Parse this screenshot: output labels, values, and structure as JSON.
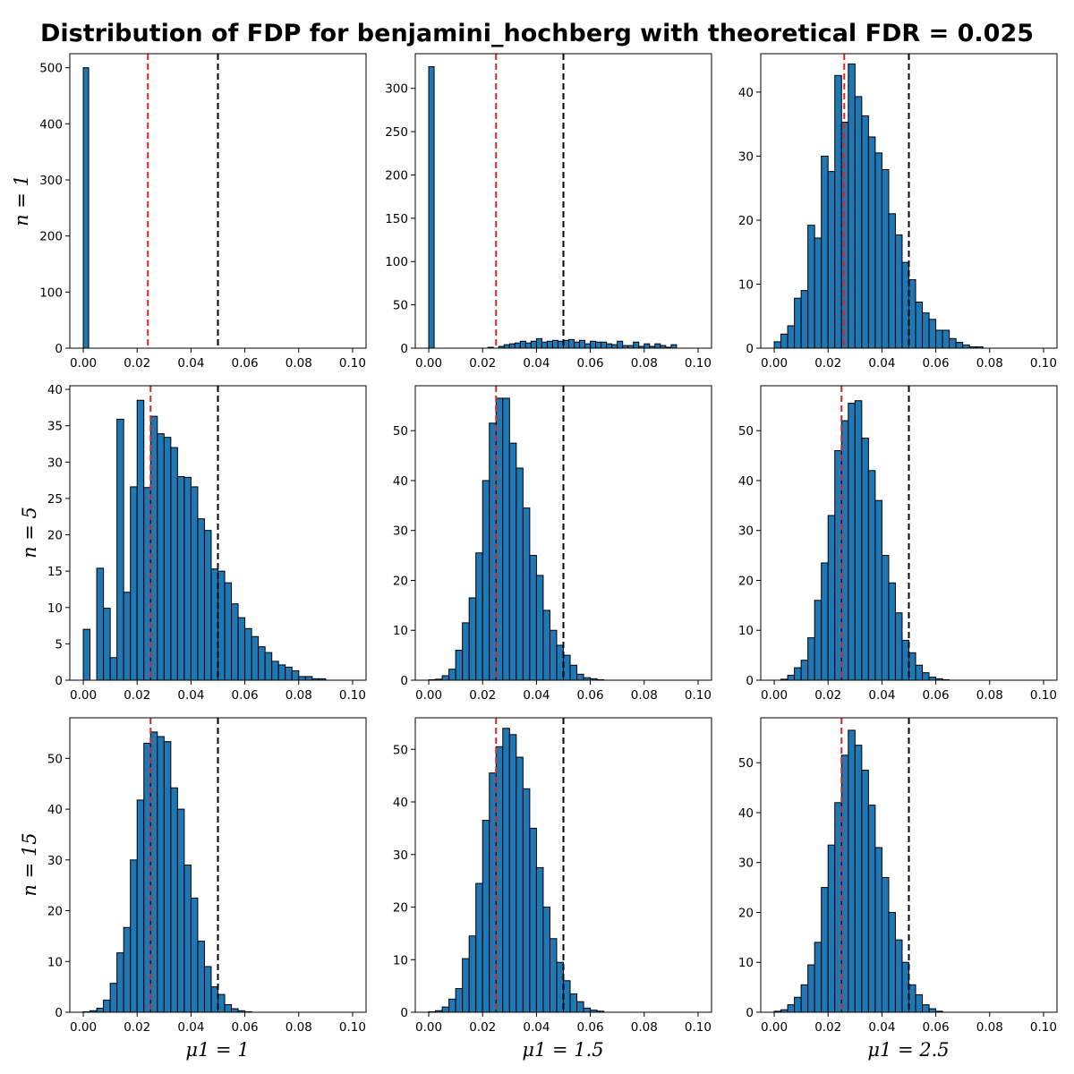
{
  "figure_title": "Distribution of FDP for benjamini_hochberg with theoretical FDR = 0.025",
  "row_labels": [
    "n = 1",
    "n = 5",
    "n = 15"
  ],
  "col_labels": [
    "μ1 = 1",
    "μ1 = 1.5",
    "μ1 = 2.5"
  ],
  "colors": {
    "bar": "#1f77b4",
    "bar_edge": "#000000",
    "red_line": "#d62728",
    "black_line": "#000000"
  },
  "chart_data": [
    {
      "type": "bar",
      "row": 0,
      "col": 0,
      "x_start": 0.0,
      "bin_width": 0.002,
      "xlim": [
        -0.005,
        0.105
      ],
      "ylim": [
        0,
        525
      ],
      "xticks": [
        "0.00",
        "0.02",
        "0.04",
        "0.06",
        "0.08",
        "0.10"
      ],
      "yticks": [
        0,
        100,
        200,
        300,
        400,
        500
      ],
      "red_line": 0.024,
      "black_line": 0.05,
      "values": [
        500
      ]
    },
    {
      "type": "bar",
      "row": 0,
      "col": 1,
      "x_start": 0.0,
      "bin_width": 0.002,
      "xlim": [
        -0.005,
        0.105
      ],
      "ylim": [
        0,
        340
      ],
      "xticks": [
        "0.00",
        "0.02",
        "0.04",
        "0.06",
        "0.08",
        "0.10"
      ],
      "yticks": [
        0,
        50,
        100,
        150,
        200,
        250,
        300
      ],
      "red_line": 0.025,
      "black_line": 0.05,
      "values": [
        325,
        0,
        0,
        0,
        0,
        0,
        0,
        0,
        0,
        0,
        0,
        1,
        0,
        2,
        4,
        5,
        6,
        8,
        6,
        8,
        11,
        7,
        8,
        9,
        8,
        9,
        10,
        7,
        9,
        5,
        8,
        7,
        7,
        5,
        4,
        8,
        3,
        3,
        7,
        2,
        5,
        2,
        5,
        3,
        1,
        4
      ]
    },
    {
      "type": "bar",
      "row": 0,
      "col": 2,
      "x_start": 0.0,
      "bin_width": 0.0025,
      "xlim": [
        -0.005,
        0.105
      ],
      "ylim": [
        0,
        46
      ],
      "xticks": [
        "0.00",
        "0.02",
        "0.04",
        "0.06",
        "0.08",
        "0.10"
      ],
      "yticks": [
        0,
        10,
        20,
        30,
        40
      ],
      "red_line": 0.026,
      "black_line": 0.05,
      "values": [
        1,
        2.2,
        3.5,
        7.8,
        9,
        19.2,
        17.2,
        30,
        27.6,
        42.6,
        35.3,
        44.4,
        39.3,
        36.3,
        33,
        30.5,
        27.9,
        21,
        17.7,
        13.4,
        10.7,
        7.2,
        5.5,
        4.5,
        2.8,
        2.8,
        1.5,
        0.9,
        0.5,
        0.2,
        0.2
      ]
    },
    {
      "type": "bar",
      "row": 1,
      "col": 0,
      "x_start": 0.0,
      "bin_width": 0.0025,
      "xlim": [
        -0.005,
        0.105
      ],
      "ylim": [
        0,
        40.5
      ],
      "xticks": [
        "0.00",
        "0.02",
        "0.04",
        "0.06",
        "0.08",
        "0.10"
      ],
      "yticks": [
        0,
        5,
        10,
        15,
        20,
        25,
        30,
        35,
        40
      ],
      "red_line": 0.025,
      "black_line": 0.05,
      "values": [
        7,
        0,
        15.4,
        9.9,
        3.1,
        35.9,
        12.1,
        26.6,
        38.5,
        26.5,
        36.3,
        33.9,
        33.4,
        32,
        28,
        27.9,
        26.6,
        22.2,
        20.6,
        15.3,
        15,
        13.4,
        10.5,
        8.6,
        7.1,
        6,
        4.6,
        3.8,
        2.6,
        2.1,
        1.8,
        1.3,
        0.5,
        0.5,
        0.2,
        0.2
      ]
    },
    {
      "type": "bar",
      "row": 1,
      "col": 1,
      "x_start": 0.0,
      "bin_width": 0.0025,
      "xlim": [
        -0.005,
        0.105
      ],
      "ylim": [
        0,
        59
      ],
      "xticks": [
        "0.00",
        "0.02",
        "0.04",
        "0.06",
        "0.08",
        "0.10"
      ],
      "yticks": [
        0,
        10,
        20,
        30,
        40,
        50
      ],
      "red_line": 0.025,
      "black_line": 0.05,
      "values": [
        0.1,
        0.2,
        0.9,
        2.2,
        6,
        11.5,
        16.5,
        25.5,
        40,
        51.5,
        56.5,
        56.5,
        47.5,
        42.5,
        34.5,
        25,
        21,
        14,
        10,
        7,
        5,
        3,
        1.2,
        0.5,
        0.3,
        0.1
      ]
    },
    {
      "type": "bar",
      "row": 1,
      "col": 2,
      "x_start": 0.0,
      "bin_width": 0.0025,
      "xlim": [
        -0.005,
        0.105
      ],
      "ylim": [
        0,
        59
      ],
      "xticks": [
        "0.00",
        "0.02",
        "0.04",
        "0.06",
        "0.08",
        "0.10"
      ],
      "yticks": [
        0,
        10,
        20,
        30,
        40,
        50
      ],
      "red_line": 0.025,
      "black_line": 0.05,
      "values": [
        0,
        0.2,
        1,
        2.5,
        4,
        8.5,
        16,
        23.5,
        33,
        46,
        52,
        55.5,
        56,
        48.5,
        42,
        36,
        25,
        19.5,
        13.5,
        8,
        5.5,
        3,
        1.5,
        0.6,
        0.3,
        0.1
      ]
    },
    {
      "type": "bar",
      "row": 2,
      "col": 0,
      "x_start": 0.0,
      "bin_width": 0.0025,
      "xlim": [
        -0.005,
        0.105
      ],
      "ylim": [
        0,
        58
      ],
      "xticks": [
        "0.00",
        "0.02",
        "0.04",
        "0.06",
        "0.08",
        "0.10"
      ],
      "yticks": [
        0,
        10,
        20,
        30,
        40,
        50
      ],
      "red_line": 0.025,
      "black_line": 0.05,
      "values": [
        0.1,
        0.3,
        0.8,
        2.4,
        5.7,
        11.7,
        16.7,
        30,
        41.8,
        53,
        55.2,
        54.3,
        53.3,
        44.2,
        40,
        29,
        22.5,
        14,
        9,
        5,
        3.5,
        1.5,
        0.7,
        0.3,
        0.1
      ]
    },
    {
      "type": "bar",
      "row": 2,
      "col": 1,
      "x_start": 0.0,
      "bin_width": 0.0025,
      "xlim": [
        -0.005,
        0.105
      ],
      "ylim": [
        0,
        56
      ],
      "xticks": [
        "0.00",
        "0.02",
        "0.04",
        "0.06",
        "0.08",
        "0.10"
      ],
      "yticks": [
        0,
        10,
        20,
        30,
        40,
        50
      ],
      "red_line": 0.025,
      "black_line": 0.05,
      "values": [
        0.1,
        0.3,
        1,
        2.5,
        4.5,
        10.2,
        14.5,
        24.5,
        36.5,
        45.5,
        50.5,
        54,
        52.8,
        48.5,
        42.5,
        35,
        27.5,
        20,
        14,
        9.5,
        6,
        3.5,
        2,
        0.8,
        0.4,
        0.2
      ]
    },
    {
      "type": "bar",
      "row": 2,
      "col": 2,
      "x_start": 0.0,
      "bin_width": 0.0025,
      "xlim": [
        -0.005,
        0.105
      ],
      "ylim": [
        0,
        59
      ],
      "xticks": [
        "0.00",
        "0.02",
        "0.04",
        "0.06",
        "0.08",
        "0.10"
      ],
      "yticks": [
        0,
        10,
        20,
        30,
        40,
        50
      ],
      "red_line": 0.025,
      "black_line": 0.05,
      "values": [
        0.2,
        0.5,
        1.5,
        3,
        5.5,
        9.5,
        14,
        25,
        33.5,
        42,
        51.5,
        56.5,
        53.5,
        48.5,
        41.5,
        33,
        27,
        20,
        14.5,
        10,
        5.5,
        3.5,
        1.5,
        0.7,
        0.2
      ]
    }
  ]
}
